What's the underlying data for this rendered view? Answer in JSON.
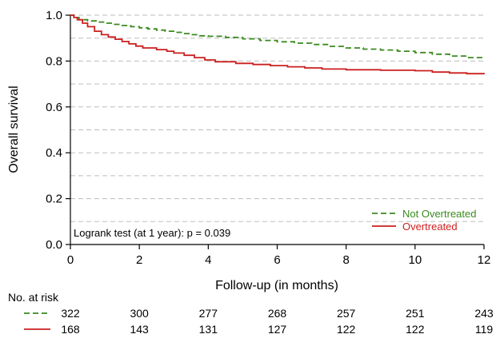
{
  "chart_data": {
    "type": "line",
    "title": "",
    "xlabel": "Follow-up (in months)",
    "ylabel": "Overall survival",
    "xlim": [
      0,
      12
    ],
    "ylim": [
      0,
      1
    ],
    "x_ticks": [
      "0",
      "2",
      "4",
      "6",
      "8",
      "10",
      "12"
    ],
    "y_ticks": [
      "0.0",
      "0.2",
      "0.4",
      "0.6",
      "0.8",
      "1.0"
    ],
    "grid": "horizontal dashed gray at every 0.1",
    "legend_position": "bottom-right",
    "annotation": "Logrank test (at 1 year): p = 0.039",
    "series": [
      {
        "name": "Not Overtreated",
        "color": "#3a8a1f",
        "line_style": "dashed",
        "x": [
          0,
          0.1,
          0.25,
          0.5,
          0.75,
          1.0,
          1.25,
          1.5,
          1.75,
          2.0,
          2.25,
          2.5,
          2.75,
          3.0,
          3.25,
          3.5,
          3.75,
          4.0,
          4.5,
          5.0,
          5.5,
          6.0,
          6.5,
          7.0,
          7.5,
          8.0,
          8.5,
          9.0,
          9.5,
          10.0,
          10.5,
          11.0,
          11.5,
          12.0
        ],
        "values": [
          1.0,
          0.99,
          0.98,
          0.975,
          0.97,
          0.965,
          0.96,
          0.955,
          0.95,
          0.945,
          0.94,
          0.935,
          0.93,
          0.925,
          0.92,
          0.915,
          0.91,
          0.908,
          0.903,
          0.897,
          0.89,
          0.884,
          0.878,
          0.872,
          0.864,
          0.857,
          0.852,
          0.848,
          0.843,
          0.837,
          0.83,
          0.822,
          0.815,
          0.81
        ]
      },
      {
        "name": "Overtreated",
        "color": "#cc1f1f",
        "line_style": "solid",
        "x": [
          0,
          0.1,
          0.2,
          0.35,
          0.5,
          0.7,
          0.9,
          1.1,
          1.3,
          1.5,
          1.7,
          1.9,
          2.1,
          2.5,
          2.8,
          3.0,
          3.3,
          3.6,
          3.9,
          4.2,
          4.8,
          5.3,
          5.8,
          6.3,
          6.8,
          7.3,
          8.0,
          9.0,
          10.0,
          10.5,
          11.0,
          11.5,
          12.0
        ],
        "values": [
          1.0,
          0.99,
          0.98,
          0.965,
          0.95,
          0.93,
          0.915,
          0.905,
          0.895,
          0.885,
          0.875,
          0.865,
          0.857,
          0.85,
          0.843,
          0.835,
          0.825,
          0.815,
          0.805,
          0.797,
          0.79,
          0.785,
          0.78,
          0.775,
          0.77,
          0.765,
          0.762,
          0.76,
          0.758,
          0.752,
          0.748,
          0.745,
          0.742
        ]
      }
    ]
  },
  "risk_table": {
    "title": "No. at risk",
    "times": [
      0,
      2,
      4,
      6,
      8,
      10,
      12
    ],
    "rows": [
      {
        "name": "Not Overtreated",
        "counts": [
          "322",
          "300",
          "277",
          "268",
          "257",
          "251",
          "243"
        ]
      },
      {
        "name": "Overtreated",
        "counts": [
          "168",
          "143",
          "131",
          "127",
          "122",
          "122",
          "119"
        ]
      }
    ]
  }
}
